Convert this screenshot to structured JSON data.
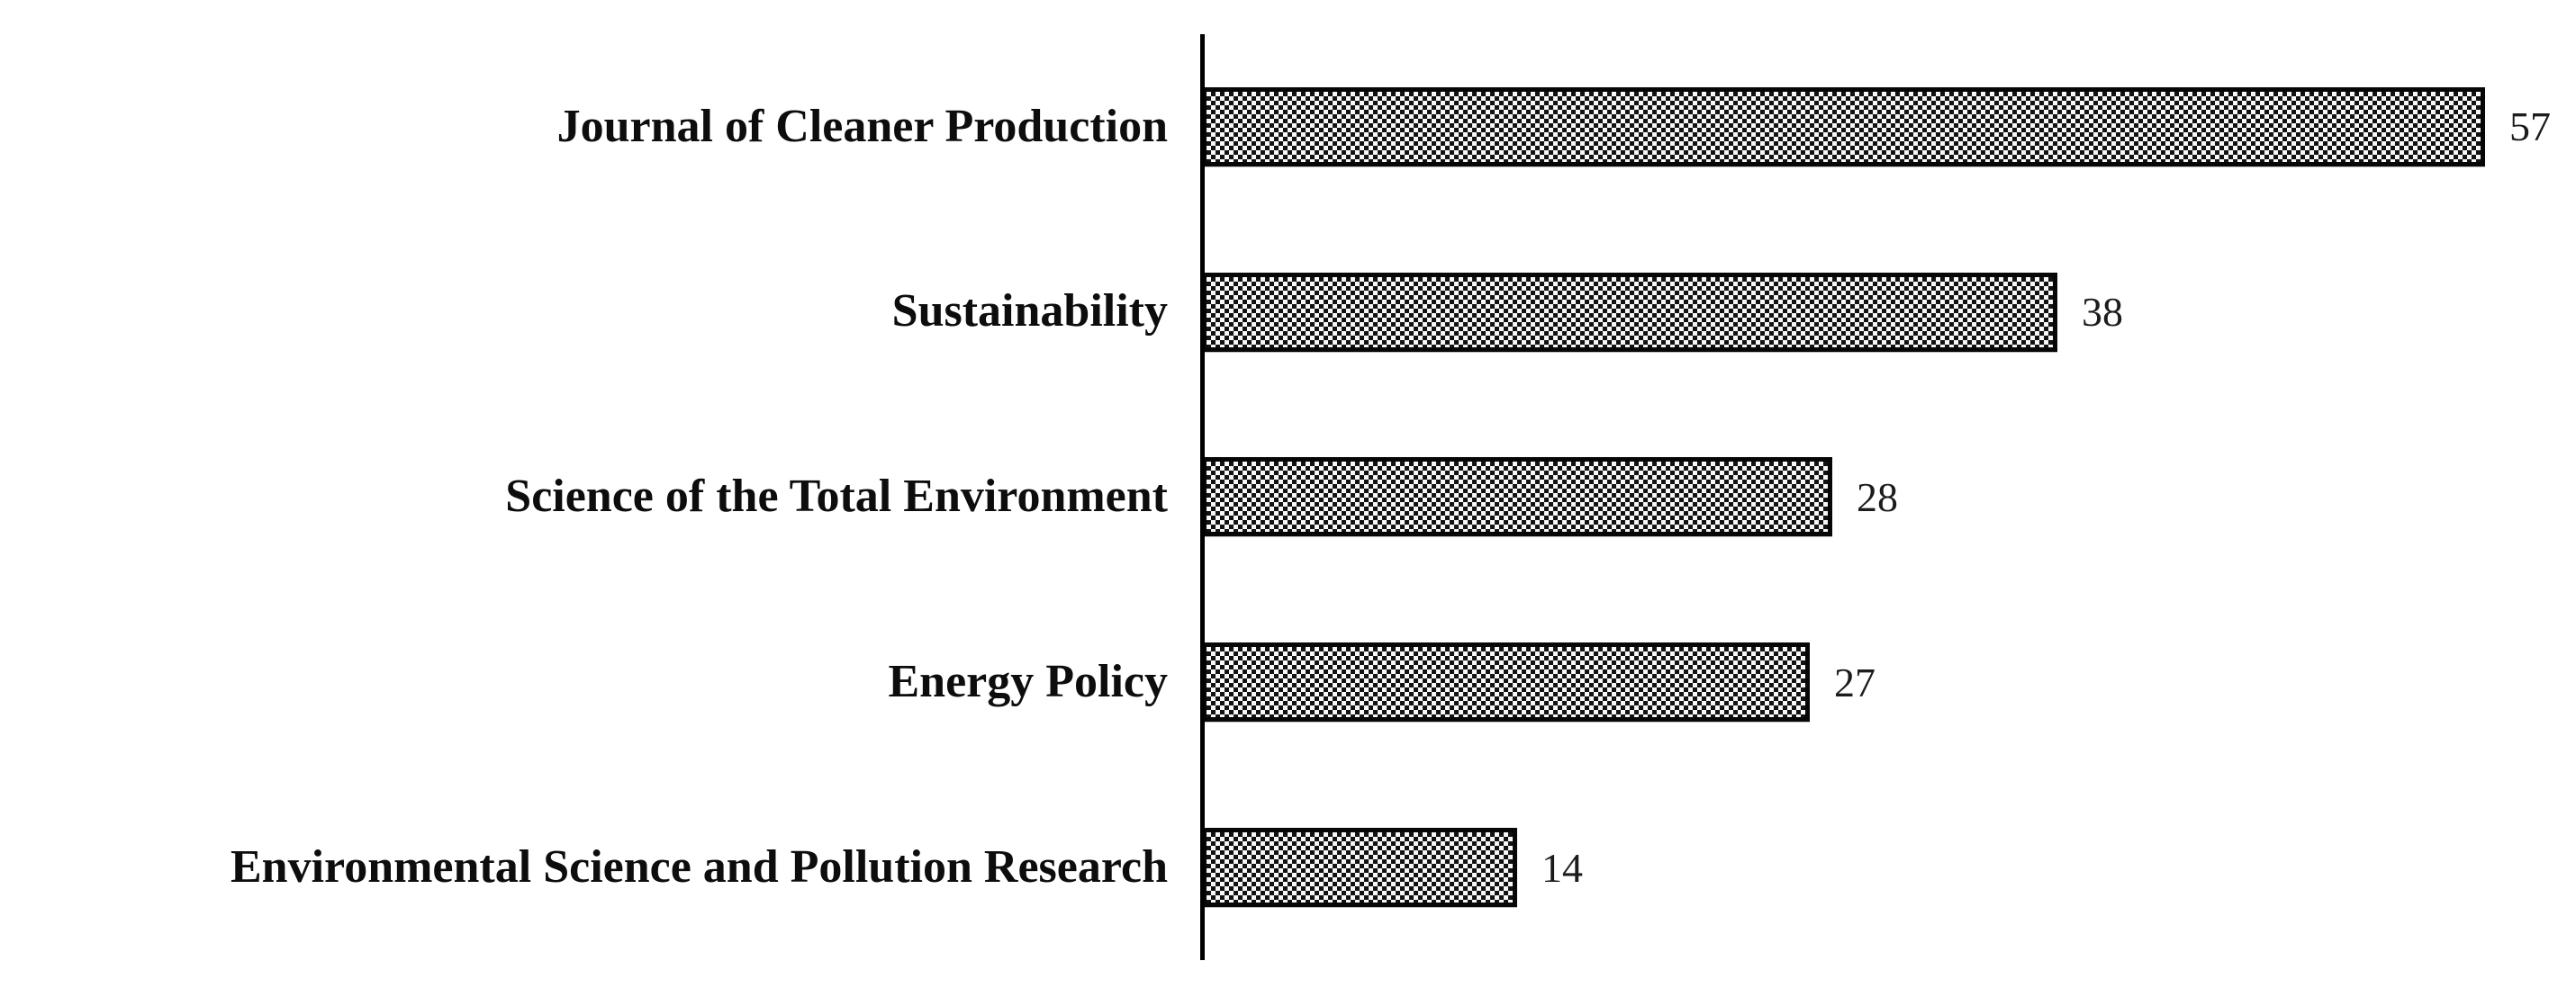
{
  "chart_data": {
    "type": "bar",
    "orientation": "horizontal",
    "title": "",
    "xlabel": "",
    "ylabel": "",
    "categories": [
      "Journal of Cleaner Production",
      "Sustainability",
      "Science of the Total Environment",
      "Energy Policy",
      "Environmental Science and Pollution Research"
    ],
    "values": [
      57,
      38,
      28,
      27,
      14
    ],
    "value_labels": [
      "57",
      "38",
      "28",
      "27",
      "14"
    ],
    "xlim": [
      0,
      60
    ],
    "grid": "off",
    "legend": "none",
    "bar_fill": "black-white-checkerboard-pattern",
    "bar_border_color": "#070707",
    "axis_line_color": "#000000",
    "label_color": "#0d0d0d",
    "value_color": "#1c1c1c",
    "background": "#ffffff"
  }
}
